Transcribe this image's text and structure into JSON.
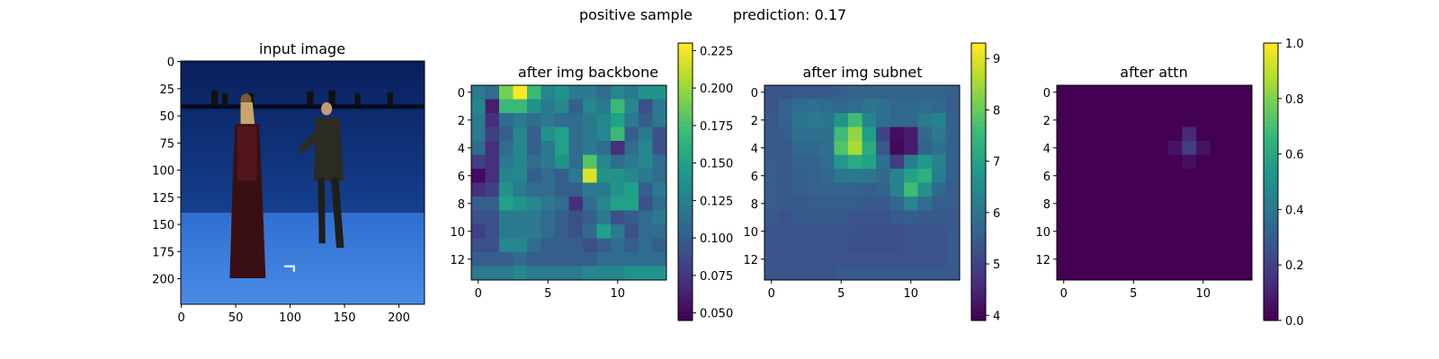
{
  "figure": {
    "suptitle_left": "positive sample",
    "suptitle_right": "prediction: 0.17"
  },
  "chart_data": [
    {
      "type": "image",
      "title": "input image",
      "image_description": "two people standing in a blue studio with a blue floor",
      "x_ticks": [
        "0",
        "50",
        "100",
        "150",
        "200"
      ],
      "y_ticks": [
        "0",
        "25",
        "50",
        "75",
        "100",
        "125",
        "150",
        "175",
        "200"
      ],
      "xlim": [
        0,
        224
      ],
      "ylim": [
        224,
        0
      ],
      "colors": {
        "wall": "#0b2a7a",
        "floor": "#3f7fdc"
      }
    },
    {
      "type": "heatmap",
      "title": "after img backbone",
      "colormap": "viridis",
      "x_ticks": [
        "0",
        "5",
        "10"
      ],
      "y_ticks": [
        "0",
        "2",
        "4",
        "6",
        "8",
        "10",
        "12"
      ],
      "colorbar_ticks": [
        "0.050",
        "0.075",
        "0.100",
        "0.125",
        "0.150",
        "0.175",
        "0.200",
        "0.225"
      ],
      "vmin": 0.045,
      "vmax": 0.23,
      "values": [
        [
          0.12,
          0.11,
          0.19,
          0.23,
          0.17,
          0.13,
          0.14,
          0.12,
          0.12,
          0.11,
          0.13,
          0.12,
          0.14,
          0.14
        ],
        [
          0.13,
          0.06,
          0.17,
          0.17,
          0.14,
          0.12,
          0.13,
          0.1,
          0.13,
          0.12,
          0.17,
          0.13,
          0.09,
          0.12
        ],
        [
          0.12,
          0.07,
          0.11,
          0.12,
          0.11,
          0.12,
          0.11,
          0.11,
          0.12,
          0.13,
          0.15,
          0.12,
          0.1,
          0.12
        ],
        [
          0.12,
          0.08,
          0.1,
          0.13,
          0.1,
          0.14,
          0.15,
          0.11,
          0.12,
          0.13,
          0.17,
          0.1,
          0.12,
          0.09
        ],
        [
          0.11,
          0.07,
          0.11,
          0.13,
          0.1,
          0.12,
          0.15,
          0.11,
          0.12,
          0.11,
          0.07,
          0.11,
          0.13,
          0.09
        ],
        [
          0.08,
          0.07,
          0.12,
          0.13,
          0.11,
          0.12,
          0.14,
          0.11,
          0.18,
          0.13,
          0.11,
          0.12,
          0.13,
          0.11
        ],
        [
          0.05,
          0.07,
          0.13,
          0.13,
          0.1,
          0.11,
          0.1,
          0.12,
          0.22,
          0.14,
          0.14,
          0.13,
          0.12,
          0.11
        ],
        [
          0.07,
          0.08,
          0.14,
          0.12,
          0.11,
          0.11,
          0.1,
          0.1,
          0.12,
          0.12,
          0.14,
          0.15,
          0.1,
          0.12
        ],
        [
          0.1,
          0.1,
          0.15,
          0.14,
          0.13,
          0.12,
          0.11,
          0.07,
          0.11,
          0.13,
          0.15,
          0.15,
          0.09,
          0.11
        ],
        [
          0.09,
          0.09,
          0.12,
          0.12,
          0.12,
          0.11,
          0.1,
          0.09,
          0.1,
          0.12,
          0.09,
          0.1,
          0.11,
          0.12
        ],
        [
          0.08,
          0.09,
          0.12,
          0.12,
          0.12,
          0.11,
          0.1,
          0.09,
          0.11,
          0.15,
          0.12,
          0.09,
          0.11,
          0.11
        ],
        [
          0.09,
          0.09,
          0.13,
          0.13,
          0.11,
          0.1,
          0.1,
          0.1,
          0.09,
          0.1,
          0.11,
          0.1,
          0.11,
          0.1
        ],
        [
          0.1,
          0.1,
          0.1,
          0.11,
          0.1,
          0.1,
          0.1,
          0.1,
          0.1,
          0.11,
          0.11,
          0.11,
          0.11,
          0.11
        ],
        [
          0.12,
          0.12,
          0.12,
          0.13,
          0.12,
          0.12,
          0.12,
          0.12,
          0.13,
          0.13,
          0.13,
          0.14,
          0.14,
          0.14
        ]
      ]
    },
    {
      "type": "heatmap",
      "title": "after img subnet",
      "colormap": "viridis",
      "x_ticks": [
        "0",
        "5",
        "10"
      ],
      "y_ticks": [
        "0",
        "2",
        "4",
        "6",
        "8",
        "10",
        "12"
      ],
      "colorbar_ticks": [
        "4",
        "5",
        "6",
        "7",
        "8",
        "9"
      ],
      "vmin": 3.9,
      "vmax": 9.3,
      "values": [
        [
          5.3,
          5.3,
          5.4,
          5.4,
          5.4,
          5.5,
          5.6,
          5.6,
          5.6,
          5.6,
          5.6,
          5.6,
          5.6,
          5.5
        ],
        [
          5.3,
          5.6,
          5.8,
          5.9,
          5.8,
          5.7,
          5.8,
          6.0,
          5.9,
          5.7,
          5.7,
          5.8,
          5.7,
          5.5
        ],
        [
          5.4,
          5.6,
          6.0,
          6.1,
          6.0,
          6.7,
          7.6,
          6.4,
          5.9,
          5.7,
          5.7,
          6.1,
          6.3,
          5.6
        ],
        [
          5.4,
          5.5,
          5.9,
          5.9,
          5.9,
          7.6,
          8.4,
          6.9,
          5.0,
          4.1,
          4.3,
          5.7,
          6.1,
          5.6
        ],
        [
          5.4,
          5.4,
          5.7,
          5.7,
          5.9,
          7.8,
          8.6,
          7.2,
          5.4,
          4.0,
          4.3,
          5.6,
          5.9,
          5.6
        ],
        [
          5.5,
          5.4,
          5.6,
          5.6,
          5.8,
          6.8,
          7.2,
          7.0,
          5.9,
          4.9,
          6.2,
          6.8,
          6.3,
          5.6
        ],
        [
          5.5,
          5.4,
          5.5,
          5.6,
          5.7,
          6.0,
          6.1,
          6.0,
          5.7,
          6.3,
          7.0,
          7.3,
          6.2,
          5.6
        ],
        [
          5.5,
          5.4,
          5.5,
          5.6,
          5.6,
          5.6,
          5.6,
          5.5,
          5.6,
          6.3,
          7.6,
          6.6,
          5.7,
          5.5
        ],
        [
          5.5,
          5.4,
          5.4,
          5.5,
          5.5,
          5.5,
          5.5,
          5.4,
          5.4,
          5.7,
          6.4,
          5.8,
          5.5,
          5.5
        ],
        [
          5.4,
          5.3,
          5.4,
          5.4,
          5.4,
          5.4,
          5.3,
          5.3,
          5.3,
          5.4,
          5.5,
          5.4,
          5.4,
          5.4
        ],
        [
          5.3,
          5.3,
          5.3,
          5.3,
          5.3,
          5.3,
          5.3,
          5.2,
          5.2,
          5.2,
          5.3,
          5.3,
          5.3,
          5.4
        ],
        [
          5.3,
          5.3,
          5.3,
          5.3,
          5.3,
          5.3,
          5.2,
          5.2,
          5.2,
          5.2,
          5.3,
          5.3,
          5.3,
          5.4
        ],
        [
          5.3,
          5.3,
          5.3,
          5.3,
          5.3,
          5.3,
          5.3,
          5.3,
          5.3,
          5.3,
          5.3,
          5.3,
          5.3,
          5.4
        ],
        [
          5.3,
          5.3,
          5.3,
          5.3,
          5.3,
          5.4,
          5.4,
          5.4,
          5.4,
          5.4,
          5.4,
          5.4,
          5.4,
          5.4
        ]
      ]
    },
    {
      "type": "heatmap",
      "title": "after attn",
      "colormap": "viridis",
      "x_ticks": [
        "0",
        "5",
        "10"
      ],
      "y_ticks": [
        "0",
        "2",
        "4",
        "6",
        "8",
        "10",
        "12"
      ],
      "colorbar_ticks": [
        "0.0",
        "0.2",
        "0.4",
        "0.6",
        "0.8",
        "1.0"
      ],
      "vmin": 0,
      "vmax": 1,
      "values": [
        [
          0,
          0,
          0,
          0,
          0,
          0,
          0,
          0,
          0,
          0,
          0,
          0,
          0,
          0
        ],
        [
          0,
          0,
          0,
          0,
          0,
          0,
          0,
          0,
          0,
          0,
          0,
          0,
          0,
          0
        ],
        [
          0,
          0,
          0,
          0,
          0,
          0,
          0,
          0,
          0,
          0,
          0,
          0,
          0,
          0
        ],
        [
          0,
          0,
          0,
          0,
          0,
          0,
          0,
          0,
          0,
          0.12,
          0,
          0,
          0,
          0
        ],
        [
          0,
          0,
          0,
          0,
          0,
          0,
          0,
          0,
          0.05,
          0.18,
          0.05,
          0,
          0,
          0
        ],
        [
          0,
          0,
          0,
          0,
          0,
          0,
          0,
          0,
          0,
          0.04,
          0,
          0,
          0,
          0
        ],
        [
          0,
          0,
          0,
          0,
          0,
          0,
          0,
          0,
          0,
          0,
          0,
          0,
          0,
          0
        ],
        [
          0,
          0,
          0,
          0,
          0,
          0,
          0,
          0,
          0,
          0,
          0,
          0,
          0,
          0
        ],
        [
          0,
          0,
          0,
          0,
          0,
          0,
          0,
          0,
          0,
          0,
          0,
          0,
          0,
          0
        ],
        [
          0,
          0,
          0,
          0,
          0,
          0,
          0,
          0,
          0,
          0,
          0,
          0,
          0,
          0
        ],
        [
          0,
          0,
          0,
          0,
          0,
          0,
          0,
          0,
          0,
          0,
          0,
          0,
          0,
          0
        ],
        [
          0,
          0,
          0,
          0,
          0,
          0,
          0,
          0,
          0,
          0,
          0,
          0,
          0,
          0
        ],
        [
          0,
          0,
          0,
          0,
          0,
          0,
          0,
          0,
          0,
          0,
          0,
          0,
          0,
          0
        ],
        [
          0,
          0,
          0,
          0,
          0,
          0,
          0,
          0,
          0,
          0,
          0,
          0,
          0,
          0
        ]
      ]
    }
  ]
}
